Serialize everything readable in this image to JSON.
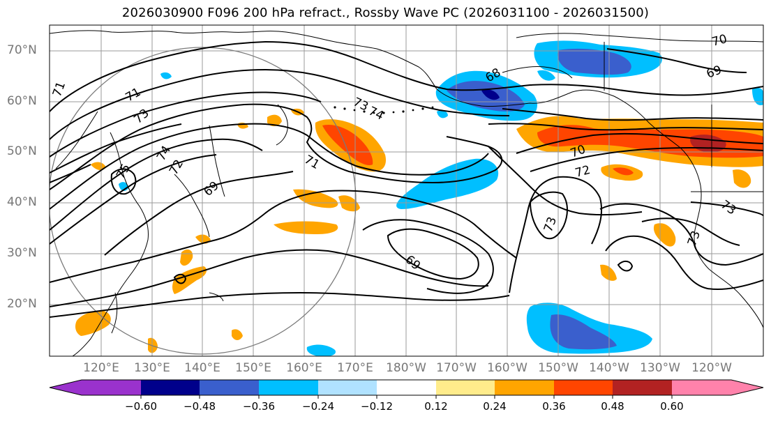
{
  "title": "2026030900 F096 200 hPa refract., Rossby Wave PC (2026031100 - 2026031500)",
  "lat_labels": [
    "70°N",
    "60°N",
    "50°N",
    "40°N",
    "30°N",
    "20°N"
  ],
  "lon_labels": [
    "120°E",
    "130°E",
    "140°E",
    "150°E",
    "160°E",
    "170°E",
    "180°W",
    "170°W",
    "160°W",
    "150°W",
    "140°W",
    "130°W",
    "120°W"
  ],
  "contour_labels": [
    "71",
    "73",
    "74",
    "75",
    "72",
    "69",
    "71",
    "73",
    "74",
    "68",
    "69",
    "70",
    "70",
    "72",
    "73",
    "69",
    "73",
    "71",
    "73"
  ],
  "colorbar": {
    "colors": [
      "#9a32cd",
      "#00008b",
      "#3a5fcd",
      "#00bfff",
      "#b0e2ff",
      "#ffffff",
      "#ffec8b",
      "#ffa500",
      "#ff4500",
      "#b22222",
      "#ff82ab"
    ],
    "ticks": [
      "−0.60",
      "−0.48",
      "−0.36",
      "−0.24",
      "−0.12",
      "0.12",
      "0.24",
      "0.36",
      "0.48",
      "0.60"
    ]
  }
}
